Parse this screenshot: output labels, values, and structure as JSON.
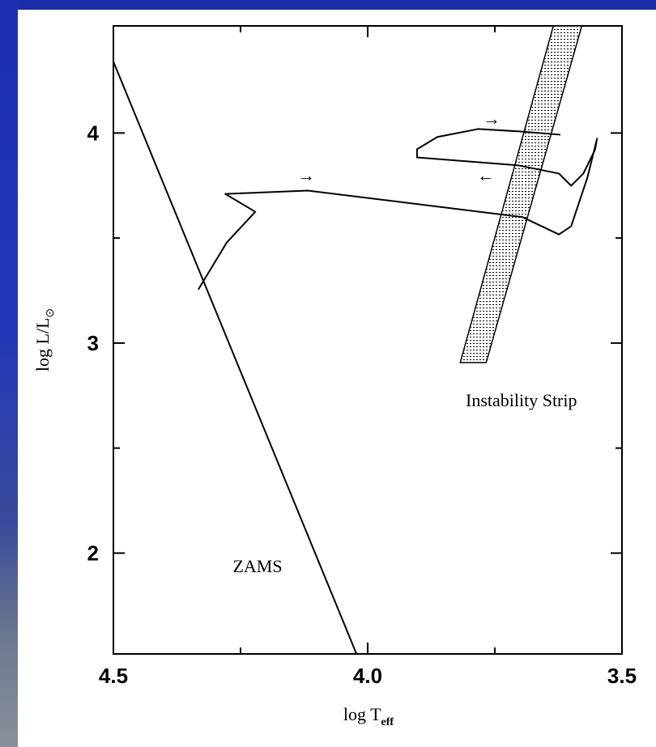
{
  "chart_data": {
    "type": "line",
    "xlabel": {
      "main": "log T",
      "sub": "eff"
    },
    "ylabel": {
      "main": "log L/L",
      "sub": "⊙"
    },
    "xlim": [
      4.5,
      3.5
    ],
    "ylim": [
      1.52,
      4.51
    ],
    "xticks": [
      4.5,
      {
        "value": 4,
        "label": "4.0"
      },
      3.5
    ],
    "yticks": [
      2,
      3,
      4
    ],
    "xminorticks": [
      4.25,
      3.75
    ],
    "yminorticks": [
      2.5,
      3.5
    ],
    "color": "#000000",
    "series": [
      {
        "x": [
          4.5,
          4.022
        ],
        "y": [
          4.34,
          1.52
        ]
      },
      {
        "x": [
          4.333,
          4.277,
          4.221,
          4.28,
          4.118,
          3.696,
          3.624,
          3.6,
          3.568,
          3.549,
          3.553,
          3.576,
          3.6,
          3.624,
          3.704,
          3.903,
          3.903,
          3.863,
          3.783,
          3.704,
          3.621
        ],
        "y": [
          3.255,
          3.479,
          3.625,
          3.71,
          3.726,
          3.6,
          3.517,
          3.556,
          3.788,
          3.973,
          3.92,
          3.807,
          3.749,
          3.807,
          3.846,
          3.884,
          3.923,
          3.981,
          4.019,
          4.008,
          3.992
        ]
      }
    ],
    "strip": {
      "x": [
        3.635,
        3.579,
        3.767,
        3.818
      ],
      "y": [
        4.51,
        4.51,
        2.907,
        2.907
      ]
    },
    "annotations": [
      "Instability Strip",
      "ZAMS",
      "→",
      "→",
      "←"
    ]
  }
}
